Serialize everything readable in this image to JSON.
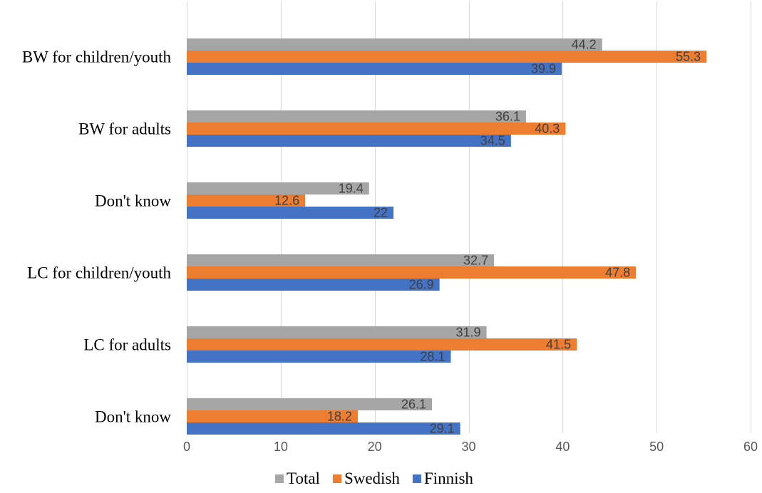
{
  "chart_data": {
    "type": "bar",
    "orientation": "horizontal",
    "title": "",
    "xlabel": "",
    "ylabel": "",
    "xlim": [
      0,
      60
    ],
    "xticks": [
      0,
      10,
      20,
      30,
      40,
      50,
      60
    ],
    "grid": true,
    "legend_position": "bottom",
    "categories": [
      "BW for children/youth",
      "BW for adults",
      "Don't know",
      "LC for children/youth",
      "LC for adults",
      "Don't know"
    ],
    "series": [
      {
        "name": "Total",
        "color": "#a5a5a5",
        "values": [
          44.2,
          36.1,
          19.4,
          32.7,
          31.9,
          26.1
        ]
      },
      {
        "name": "Swedish",
        "color": "#ed7d31",
        "values": [
          55.3,
          40.3,
          12.6,
          47.8,
          41.5,
          18.2
        ]
      },
      {
        "name": "Finnish",
        "color": "#4472c4",
        "values": [
          39.9,
          34.5,
          22,
          26.9,
          28.1,
          29.1
        ]
      }
    ]
  }
}
